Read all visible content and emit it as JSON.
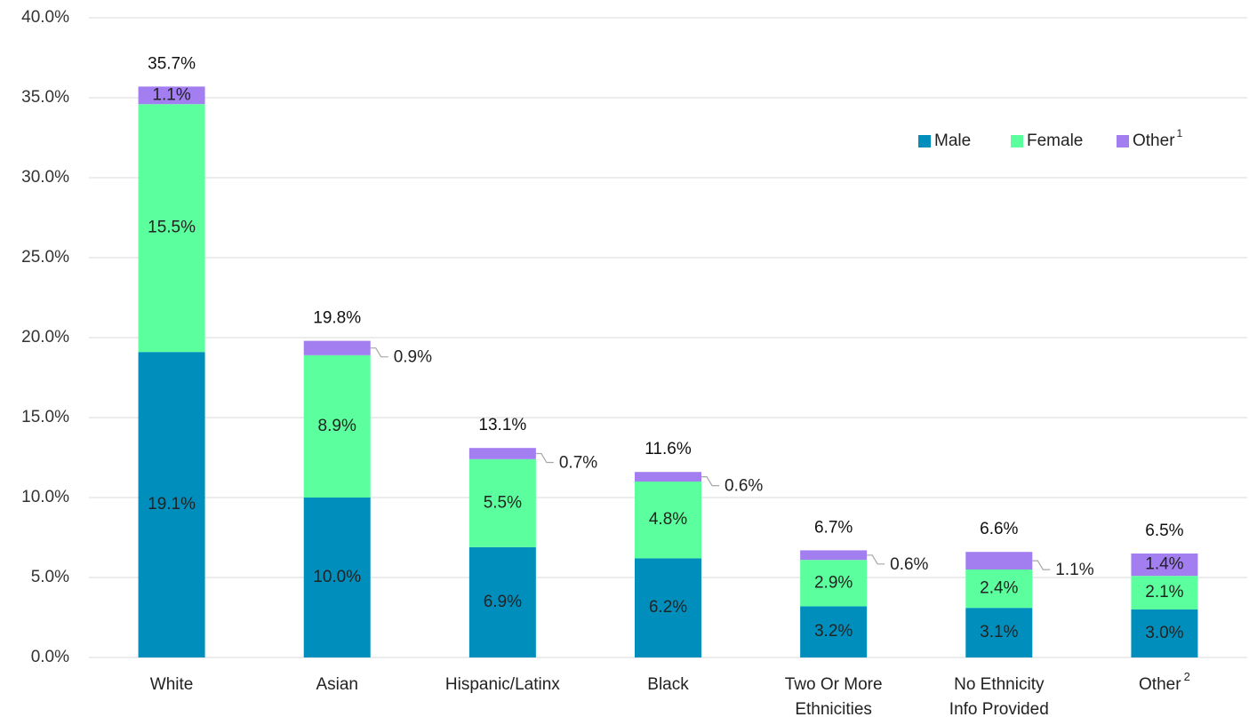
{
  "chart_data": {
    "type": "bar",
    "stacked": true,
    "categories": [
      "White",
      "Asian",
      "Hispanic/Latinx",
      "Black",
      "Two Or More Ethnicities",
      "No Ethnicity Info Provided",
      "Other"
    ],
    "category_label_lines": [
      [
        "White"
      ],
      [
        "Asian"
      ],
      [
        "Hispanic/Latinx"
      ],
      [
        "Black"
      ],
      [
        "Two Or More",
        "Ethnicities"
      ],
      [
        "No Ethnicity",
        "Info Provided"
      ],
      [
        "Other"
      ]
    ],
    "category_superscripts": [
      "",
      "",
      "",
      "",
      "",
      "",
      "2"
    ],
    "series": [
      {
        "name": "Male",
        "color": "#008fbd",
        "values": [
          19.1,
          10.0,
          6.9,
          6.2,
          3.2,
          3.1,
          3.0
        ]
      },
      {
        "name": "Female",
        "color": "#5cff9d",
        "values": [
          15.5,
          8.9,
          5.5,
          4.8,
          2.9,
          2.4,
          2.1
        ]
      },
      {
        "name": "Other",
        "superscript": "1",
        "color": "#a27ef0",
        "values": [
          1.1,
          0.9,
          0.7,
          0.6,
          0.6,
          1.1,
          1.4
        ]
      }
    ],
    "totals": [
      35.7,
      19.8,
      13.1,
      11.6,
      6.7,
      6.6,
      6.5
    ],
    "value_format": "percent_1dp",
    "other_label_placement": [
      "inside",
      "callout",
      "callout",
      "callout",
      "callout",
      "callout",
      "inside"
    ],
    "ylim": [
      0,
      40
    ],
    "yticks": [
      "0.0%",
      "5.0%",
      "10.0%",
      "15.0%",
      "20.0%",
      "25.0%",
      "30.0%",
      "35.0%",
      "40.0%"
    ],
    "ytick_values": [
      0,
      5,
      10,
      15,
      20,
      25,
      30,
      35,
      40
    ],
    "grid": true,
    "legend_position": "top-right",
    "title": "",
    "xlabel": "",
    "ylabel": ""
  }
}
